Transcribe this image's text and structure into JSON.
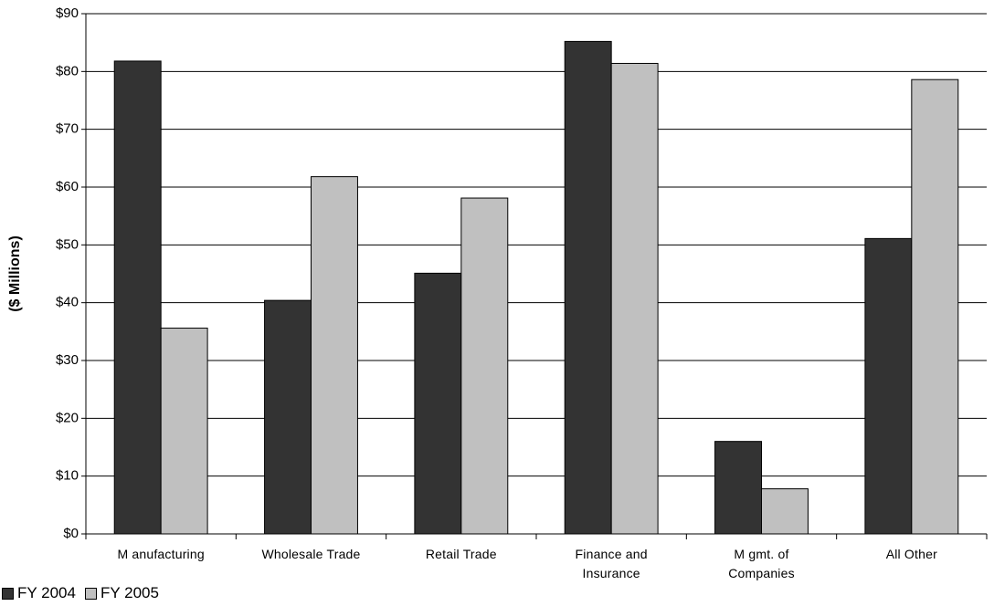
{
  "chart_data": {
    "type": "bar",
    "y_label": "($ Millions)",
    "categories": [
      "M anufacturing",
      "Wholesale Trade",
      "Retail Trade",
      "Finance and\nInsurance",
      "M gmt. of\nCompanies",
      "All Other"
    ],
    "series": [
      {
        "name": "FY 2004",
        "color": "#333333",
        "values": [
          81.8,
          40.4,
          45.1,
          85.2,
          16.0,
          51.1
        ]
      },
      {
        "name": "FY 2005",
        "color": "#c0c0c0",
        "values": [
          35.6,
          61.8,
          58.1,
          81.4,
          7.8,
          78.6
        ]
      }
    ],
    "ylim": [
      0,
      90
    ],
    "yticks": [
      {
        "value": 0,
        "label": "$0"
      },
      {
        "value": 10,
        "label": "$10"
      },
      {
        "value": 20,
        "label": "$20"
      },
      {
        "value": 30,
        "label": "$30"
      },
      {
        "value": 40,
        "label": "$40"
      },
      {
        "value": 50,
        "label": "$50"
      },
      {
        "value": 60,
        "label": "$60"
      },
      {
        "value": 70,
        "label": "$70"
      },
      {
        "value": 80,
        "label": "$80"
      },
      {
        "value": 90,
        "label": "$90"
      }
    ],
    "grid": true,
    "legend": "bottom-left"
  }
}
